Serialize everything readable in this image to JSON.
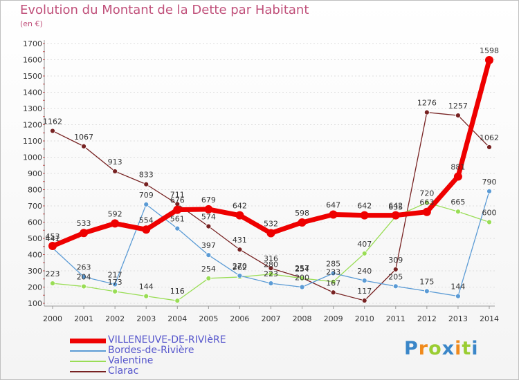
{
  "chart_data": {
    "type": "line",
    "title": "Evolution du Montant de la Dette par Habitant",
    "subtitle": "(en €)",
    "xlabel": "",
    "ylabel": "",
    "ylim": [
      100,
      1700
    ],
    "yticks": [
      100,
      200,
      300,
      400,
      500,
      600,
      700,
      800,
      900,
      1000,
      1100,
      1200,
      1300,
      1400,
      1500,
      1600,
      1700
    ],
    "categories": [
      "2000",
      "2001",
      "2002",
      "2003",
      "2004",
      "2005",
      "2006",
      "2007",
      "2008",
      "2009",
      "2010",
      "2011",
      "2012",
      "2013",
      "2014"
    ],
    "series": [
      {
        "name": "VILLENEUVE-DE-RIVIèRE",
        "color": "#ee0000",
        "values": [
          453,
          533,
          592,
          554,
          676,
          679,
          642,
          532,
          598,
          647,
          642,
          642,
          663,
          881,
          1598
        ]
      },
      {
        "name": "Bordes-de-Rivière",
        "color": "#5b9bd5",
        "values": [
          441,
          263,
          217,
          709,
          561,
          397,
          270,
          223,
          200,
          285,
          240,
          205,
          175,
          144,
          790
        ]
      },
      {
        "name": "Valentine",
        "color": "#99dd55",
        "values": [
          223,
          204,
          173,
          144,
          116,
          254,
          262,
          280,
          254,
          233,
          407,
          635,
          720,
          665,
          600
        ]
      },
      {
        "name": "Clarac",
        "color": "#772222",
        "values": [
          1162,
          1067,
          913,
          833,
          711,
          574,
          431,
          316,
          257,
          167,
          117,
          309,
          1276,
          1257,
          1062
        ]
      }
    ]
  },
  "logo": {
    "text": "Proxiti"
  }
}
